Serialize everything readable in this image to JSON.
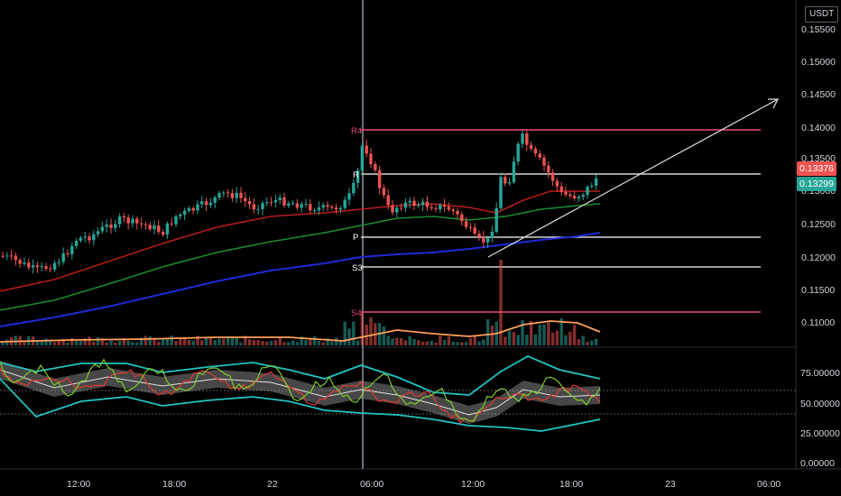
{
  "currency": "USDT",
  "price_axis": {
    "ticks": [
      "0.15500",
      "0.15000",
      "0.14500",
      "0.14000",
      "0.13500",
      "0.13000",
      "0.12500",
      "0.12000",
      "0.11500",
      "0.11000"
    ],
    "last_price": "0.13376",
    "second_price": "0.13299"
  },
  "osc_axis": {
    "ticks": [
      "75.00000",
      "50.00000",
      "25.00000",
      "0.00000"
    ]
  },
  "time_axis": {
    "ticks": [
      "12:00",
      "18:00",
      "22",
      "06:00",
      "12:00",
      "18:00",
      "23",
      "06:00"
    ]
  },
  "pivots": {
    "labels": [
      "R4",
      "R",
      "P",
      "S3",
      "S4"
    ]
  },
  "colors": {
    "up": "#26a69a",
    "down": "#ef5350",
    "r4": "#e84a7a",
    "ema_red": "#b71c1c",
    "ema_green": "#1b8a2e",
    "ema_blue": "#1e2bd6",
    "vol_ma": "#ff9f5a",
    "band": "#22c3c3",
    "rsi": "#e53935",
    "stoch": "#7ccc2a"
  },
  "chart_data": {
    "type": "candlestick",
    "price_range": [
      0.1065,
      0.1575
    ],
    "levels": {
      "R4": 0.1397,
      "R": 0.1329,
      "P": 0.1232,
      "S3": 0.1186,
      "S4": 0.1119
    },
    "trendline": [
      [
        0.1202,
        0.1443
      ]
    ],
    "oscillator_range": [
      0,
      100
    ]
  }
}
